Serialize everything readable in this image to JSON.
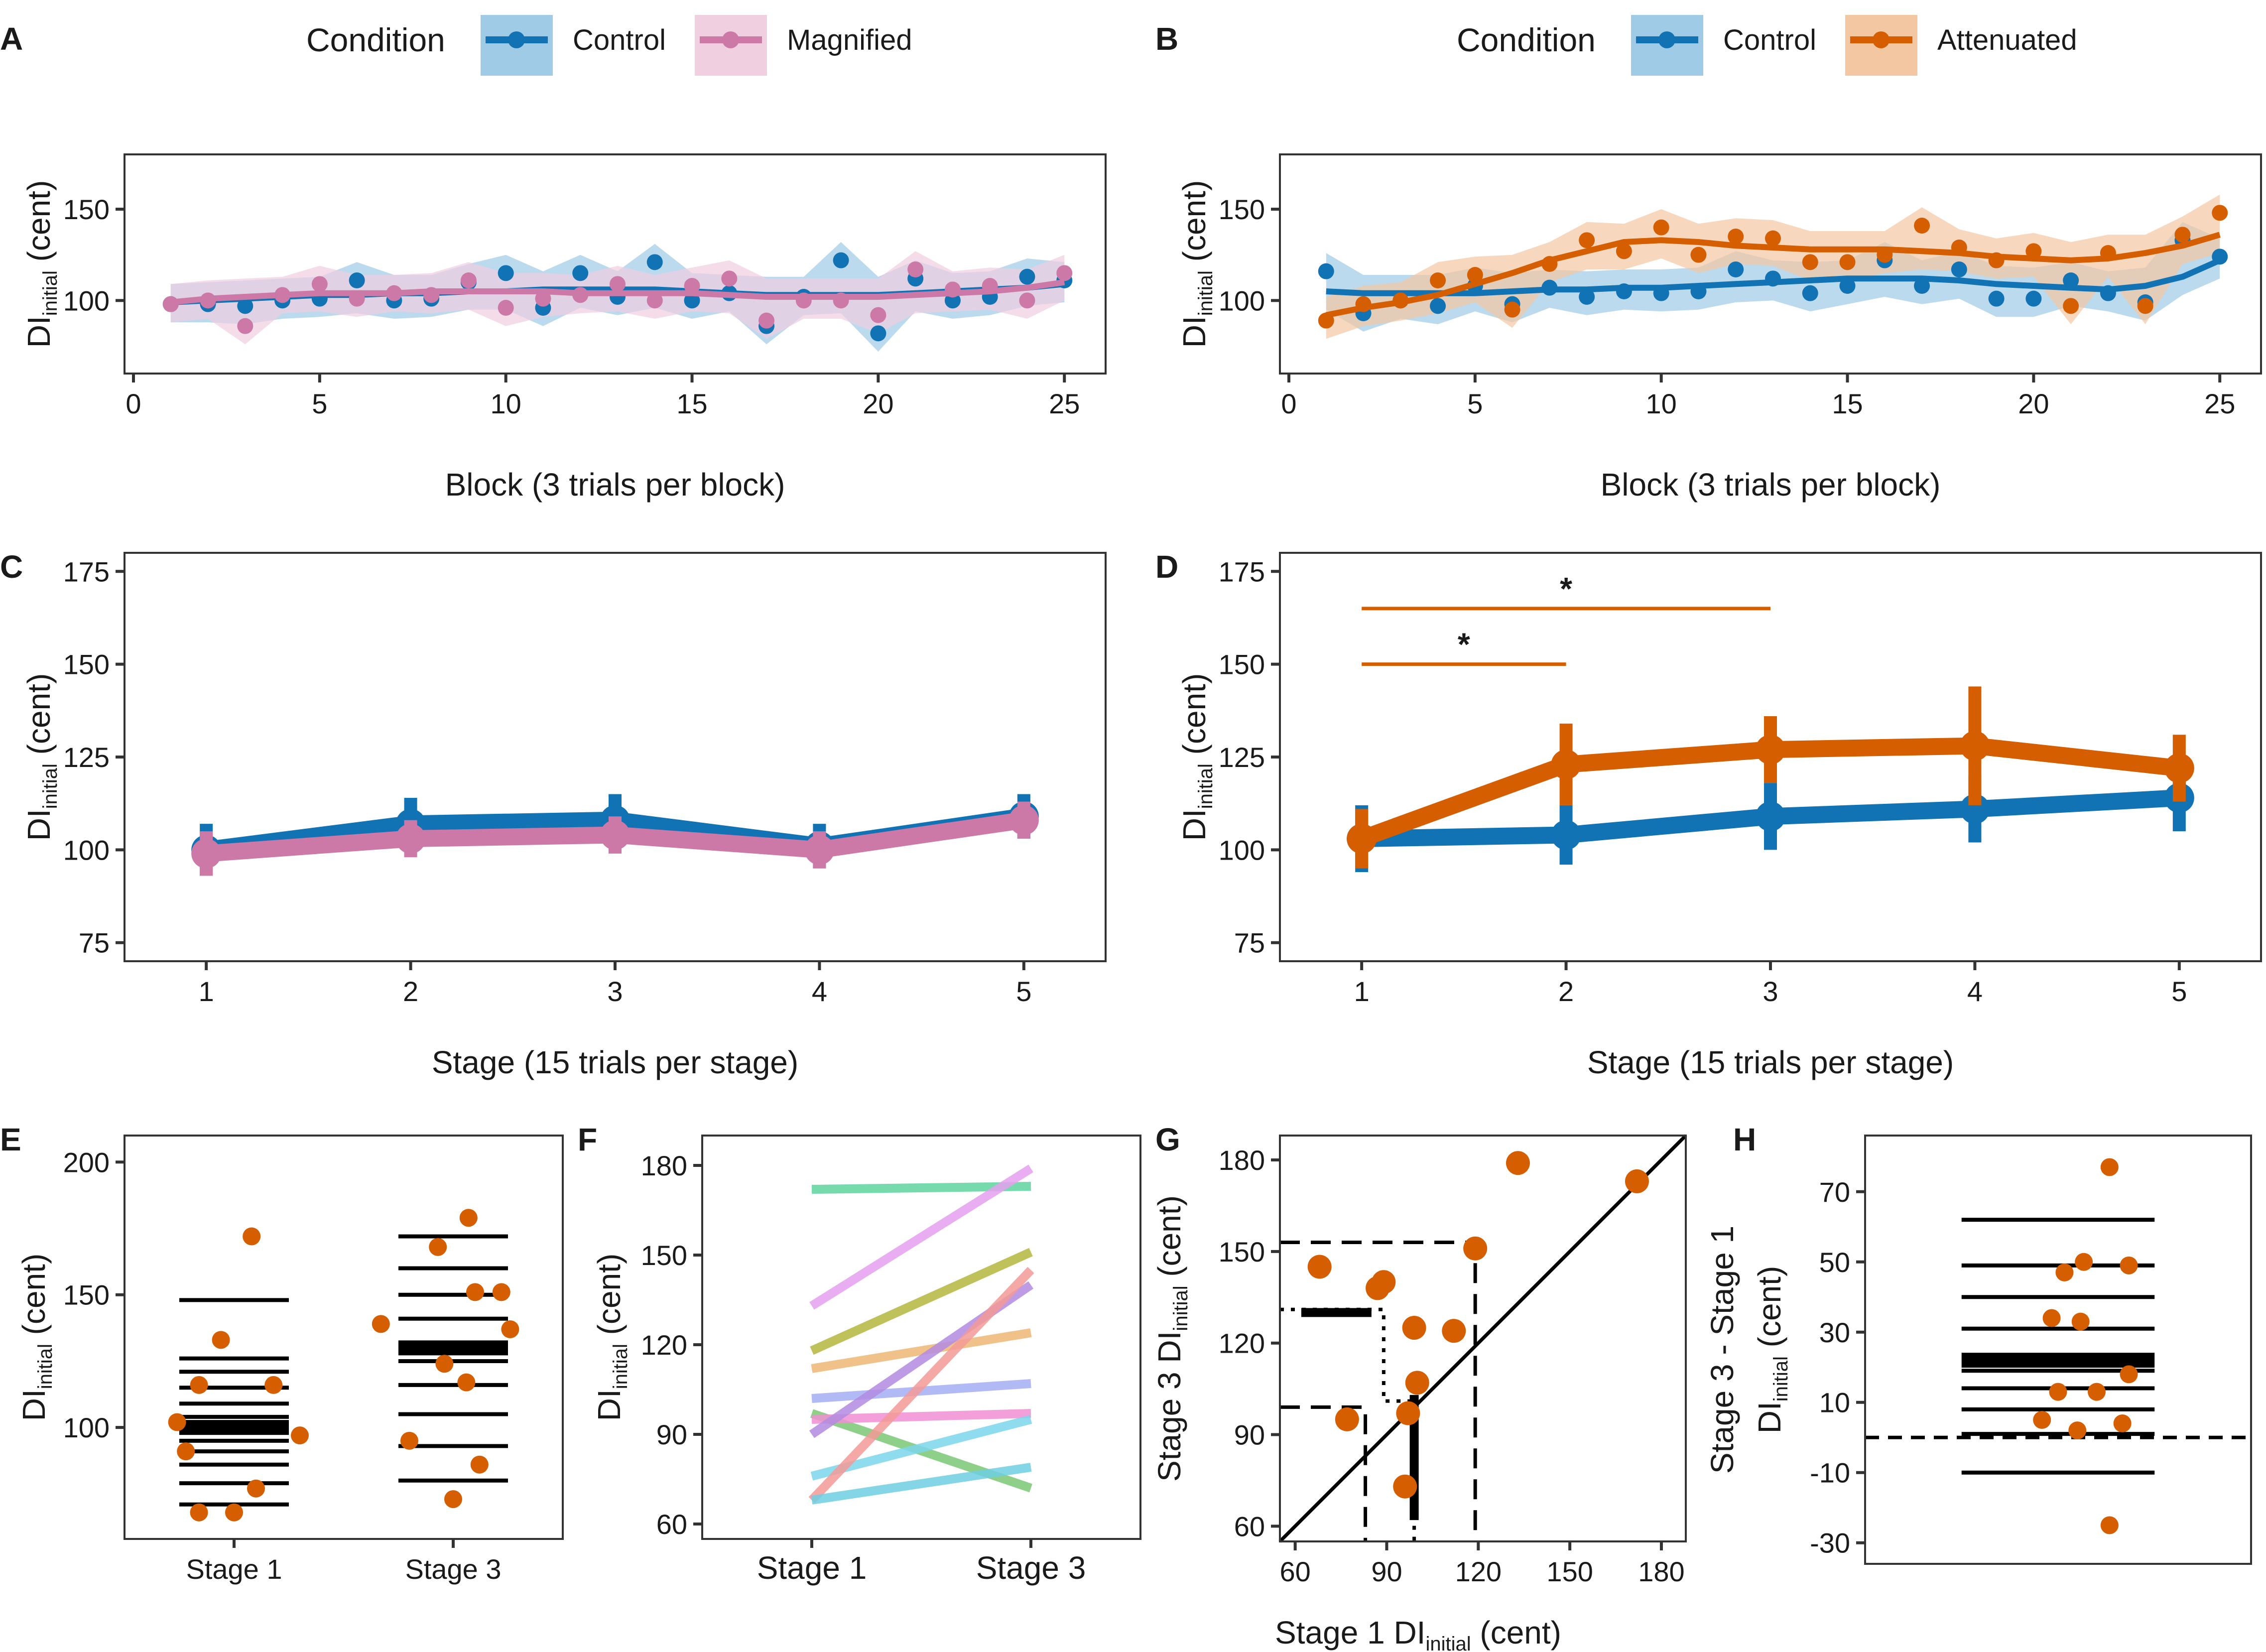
{
  "colors": {
    "control": "#1273b4",
    "control_ribbon": "#9fcbe6",
    "magnified": "#cc79a7",
    "magnified_ribbon": "#f0cfe0",
    "attenuated": "#d55e00",
    "attenuated_ribbon": "#f4c7a3"
  },
  "chart_data": [
    {
      "id": "A",
      "panel_label": "A",
      "type": "line",
      "legend": {
        "title": "Condition",
        "items": [
          "Control",
          "Magnified"
        ]
      },
      "xlabel": "Block (3 trials per block)",
      "ylabel_main": "DI",
      "ylabel_sub": "initial",
      "ylabel_unit": " (cent)",
      "xlim": [
        0,
        26
      ],
      "ylim": [
        60,
        180
      ],
      "xticks": [
        "0",
        "5",
        "10",
        "15",
        "20",
        "25"
      ],
      "yticks": [
        "100",
        "150"
      ],
      "x": [
        1,
        2,
        3,
        4,
        5,
        6,
        7,
        8,
        9,
        10,
        11,
        12,
        13,
        14,
        15,
        16,
        17,
        18,
        19,
        20,
        21,
        22,
        23,
        24,
        25
      ],
      "series": [
        {
          "name": "Control",
          "values": [
            98,
            98,
            97,
            100,
            101,
            111,
            100,
            101,
            110,
            115,
            96,
            115,
            102,
            121,
            100,
            104,
            86,
            102,
            122,
            82,
            112,
            100,
            102,
            113,
            111
          ],
          "smooth": [
            99,
            100,
            101,
            102,
            103,
            103,
            104,
            104,
            105,
            105,
            106,
            106,
            106,
            106,
            105,
            104,
            103,
            103,
            103,
            103,
            104,
            105,
            106,
            107,
            109
          ]
        },
        {
          "name": "Magnified",
          "values": [
            98,
            100,
            86,
            103,
            109,
            101,
            104,
            103,
            111,
            96,
            101,
            103,
            109,
            100,
            108,
            112,
            89,
            100,
            100,
            92,
            117,
            106,
            108,
            100,
            115
          ],
          "smooth": [
            99,
            101,
            102,
            103,
            104,
            104,
            104,
            105,
            105,
            105,
            105,
            104,
            104,
            104,
            104,
            103,
            102,
            102,
            102,
            102,
            103,
            104,
            105,
            107,
            110
          ]
        }
      ]
    },
    {
      "id": "B",
      "panel_label": "B",
      "type": "line",
      "legend": {
        "title": "Condition",
        "items": [
          "Control",
          "Attenuated"
        ]
      },
      "xlabel": "Block (3 trials per block)",
      "ylabel_main": "DI",
      "ylabel_sub": "initial",
      "ylabel_unit": " (cent)",
      "xlim": [
        0,
        26
      ],
      "ylim": [
        60,
        180
      ],
      "xticks": [
        "0",
        "5",
        "10",
        "15",
        "20",
        "25"
      ],
      "yticks": [
        "100",
        "150"
      ],
      "x": [
        1,
        2,
        3,
        4,
        5,
        6,
        7,
        8,
        9,
        10,
        11,
        12,
        13,
        14,
        15,
        16,
        17,
        18,
        19,
        20,
        21,
        22,
        23,
        24,
        25
      ],
      "series": [
        {
          "name": "Control",
          "values": [
            116,
            93,
            100,
            97,
            108,
            98,
            107,
            102,
            105,
            104,
            105,
            117,
            112,
            104,
            108,
            122,
            108,
            117,
            101,
            101,
            111,
            104,
            99,
            133,
            124
          ],
          "smooth": [
            105,
            104,
            104,
            104,
            104,
            105,
            106,
            106,
            107,
            107,
            108,
            109,
            110,
            111,
            112,
            112,
            112,
            111,
            109,
            108,
            107,
            106,
            108,
            113,
            122
          ]
        },
        {
          "name": "Attenuated",
          "values": [
            89,
            98,
            100,
            111,
            114,
            95,
            120,
            133,
            127,
            140,
            125,
            135,
            134,
            121,
            121,
            125,
            141,
            129,
            122,
            127,
            97,
            126,
            97,
            136,
            148
          ],
          "smooth": [
            92,
            96,
            99,
            103,
            109,
            115,
            122,
            127,
            132,
            133,
            132,
            130,
            129,
            128,
            128,
            128,
            127,
            126,
            124,
            123,
            122,
            123,
            126,
            130,
            136
          ]
        }
      ]
    },
    {
      "id": "C",
      "panel_label": "C",
      "type": "line",
      "xlabel": "Stage (15 trials per stage)",
      "ylabel_main": "DI",
      "ylabel_sub": "initial",
      "ylabel_unit": " (cent)",
      "xlim": [
        0.6,
        5.4
      ],
      "ylim": [
        70,
        180
      ],
      "xticks": [
        "1",
        "2",
        "3",
        "4",
        "5"
      ],
      "yticks": [
        "75",
        "100",
        "125",
        "150",
        "175"
      ],
      "x": [
        1,
        2,
        3,
        4,
        5
      ],
      "series": [
        {
          "name": "Control",
          "values": [
            100,
            107,
            108,
            101,
            109
          ],
          "err": [
            7,
            7,
            7,
            6,
            6
          ]
        },
        {
          "name": "Magnified",
          "values": [
            99,
            103,
            104,
            100,
            108
          ],
          "err": [
            6,
            5,
            5,
            5,
            5
          ]
        }
      ]
    },
    {
      "id": "D",
      "panel_label": "D",
      "type": "line",
      "xlabel": "Stage (15 trials per stage)",
      "ylabel_main": "DI",
      "ylabel_sub": "initial",
      "ylabel_unit": " (cent)",
      "xlim": [
        0.6,
        5.4
      ],
      "ylim": [
        70,
        180
      ],
      "xticks": [
        "1",
        "2",
        "3",
        "4",
        "5"
      ],
      "yticks": [
        "75",
        "100",
        "125",
        "150",
        "175"
      ],
      "x": [
        1,
        2,
        3,
        4,
        5
      ],
      "series": [
        {
          "name": "Control",
          "values": [
            103,
            104,
            109,
            111,
            114
          ],
          "err": [
            9,
            8,
            9,
            9,
            9
          ]
        },
        {
          "name": "Attenuated",
          "values": [
            103,
            123,
            127,
            128,
            122
          ],
          "err": [
            8,
            11,
            9,
            16,
            9
          ]
        }
      ],
      "annotations": [
        {
          "from": 1,
          "to": 3,
          "y": 165,
          "label": "*"
        },
        {
          "from": 1,
          "to": 2,
          "y": 150,
          "label": "*"
        }
      ]
    },
    {
      "id": "E",
      "panel_label": "E",
      "type": "scatter",
      "xlabel": "",
      "ylabel_main": "DI",
      "ylabel_sub": "initial",
      "ylabel_unit": " (cent)",
      "ylim": [
        58,
        210
      ],
      "categories": [
        "Stage 1",
        "Stage 3"
      ],
      "yticks": [
        "100",
        "150",
        "200"
      ],
      "points": [
        {
          "group": 1,
          "offset": 0.08,
          "y": 172
        },
        {
          "group": 1,
          "offset": -0.06,
          "y": 133
        },
        {
          "group": 1,
          "offset": -0.16,
          "y": 116
        },
        {
          "group": 1,
          "offset": 0.18,
          "y": 116
        },
        {
          "group": 1,
          "offset": -0.26,
          "y": 102
        },
        {
          "group": 1,
          "offset": 0.3,
          "y": 97
        },
        {
          "group": 1,
          "offset": -0.22,
          "y": 91
        },
        {
          "group": 1,
          "offset": 0.1,
          "y": 77
        },
        {
          "group": 1,
          "offset": -0.16,
          "y": 68
        },
        {
          "group": 1,
          "offset": 0.0,
          "y": 68
        },
        {
          "group": 2,
          "offset": 0.07,
          "y": 179
        },
        {
          "group": 2,
          "offset": -0.07,
          "y": 168
        },
        {
          "group": 2,
          "offset": 0.1,
          "y": 151
        },
        {
          "group": 2,
          "offset": 0.22,
          "y": 151
        },
        {
          "group": 2,
          "offset": -0.33,
          "y": 139
        },
        {
          "group": 2,
          "offset": 0.26,
          "y": 137
        },
        {
          "group": 2,
          "offset": -0.04,
          "y": 124
        },
        {
          "group": 2,
          "offset": 0.06,
          "y": 117
        },
        {
          "group": 2,
          "offset": -0.2,
          "y": 95
        },
        {
          "group": 2,
          "offset": 0.12,
          "y": 86
        },
        {
          "group": 2,
          "offset": 0.0,
          "y": 73
        }
      ],
      "stage1_lines": [
        148,
        126,
        121,
        115,
        109,
        104,
        100,
        95,
        91,
        86,
        79,
        71
      ],
      "stage1_mean": 100,
      "stage3_lines": [
        172,
        160,
        150,
        141,
        130,
        125,
        116,
        105,
        93,
        80
      ],
      "stage3_mean": 130
    },
    {
      "id": "F",
      "panel_label": "F",
      "type": "line",
      "xlabel": "",
      "ylabel_main": "DI",
      "ylabel_sub": "initial",
      "ylabel_unit": " (cent)",
      "ylim": [
        55,
        190
      ],
      "categories": [
        "Stage 1",
        "Stage 3"
      ],
      "yticks": [
        "60",
        "90",
        "120",
        "150",
        "180"
      ],
      "pairs": [
        {
          "s1": 172,
          "s3": 173,
          "color": "#5fd39d"
        },
        {
          "s1": 133,
          "s3": 179,
          "color": "#e5a0ef"
        },
        {
          "s1": 118,
          "s3": 151,
          "color": "#b4b63d"
        },
        {
          "s1": 112,
          "s3": 124,
          "color": "#eeb675"
        },
        {
          "s1": 102,
          "s3": 107,
          "color": "#a3aef2"
        },
        {
          "s1": 97,
          "s3": 72,
          "color": "#7ac874"
        },
        {
          "s1": 95,
          "s3": 97,
          "color": "#f18fd4"
        },
        {
          "s1": 90,
          "s3": 140,
          "color": "#b38be0"
        },
        {
          "s1": 76,
          "s3": 95,
          "color": "#7dd6ec"
        },
        {
          "s1": 68,
          "s3": 145,
          "color": "#f39a97"
        },
        {
          "s1": 68,
          "s3": 79,
          "color": "#6fcfe2"
        }
      ]
    },
    {
      "id": "G",
      "panel_label": "G",
      "type": "scatter",
      "xlabel_main": "Stage 1 DI",
      "xlabel_sub": "initial",
      "xlabel_unit": " (cent)",
      "ylabel_main": "Stage 3 DI",
      "ylabel_sub": "initial",
      "ylabel_unit": " (cent)",
      "xlim": [
        55,
        188
      ],
      "ylim": [
        55,
        188
      ],
      "xticks": [
        "60",
        "90",
        "120",
        "150",
        "180"
      ],
      "yticks": [
        "60",
        "90",
        "120",
        "150",
        "180"
      ],
      "x": [
        68,
        77,
        87,
        89,
        96,
        97,
        99,
        100,
        112,
        119,
        133,
        172
      ],
      "y": [
        145,
        95,
        138,
        140,
        73,
        97,
        125,
        107,
        124,
        151,
        179,
        173
      ],
      "dashed_refs": [
        [
          [
            55,
            153
          ],
          [
            119,
            153
          ],
          [
            119,
            55
          ]
        ],
        [
          [
            55,
            99
          ],
          [
            83,
            99
          ],
          [
            83,
            55
          ]
        ],
        [
          [
            55,
            131
          ],
          [
            89,
            131
          ],
          [
            89,
            101
          ],
          [
            99,
            101
          ],
          [
            99,
            55
          ]
        ]
      ],
      "thick_h": {
        "x": [
          62,
          85
        ],
        "y": 130
      },
      "thick_v": {
        "x": 99,
        "y": [
          62,
          103
        ]
      }
    },
    {
      "id": "H",
      "panel_label": "H",
      "type": "scatter",
      "xlabel": "",
      "ylabel_line1": "Stage 3 - Stage 1",
      "ylabel_main": "DI",
      "ylabel_sub": "initial",
      "ylabel_unit": " (cent)",
      "ylim": [
        -36,
        86
      ],
      "yticks": [
        "-30",
        "-10",
        "10",
        "30",
        "50",
        "70"
      ],
      "points": [
        {
          "offset": 0.16,
          "y": 77
        },
        {
          "offset": 0.08,
          "y": 50
        },
        {
          "offset": 0.02,
          "y": 47
        },
        {
          "offset": 0.22,
          "y": 49
        },
        {
          "offset": -0.02,
          "y": 34
        },
        {
          "offset": 0.07,
          "y": 33
        },
        {
          "offset": 0.22,
          "y": 18
        },
        {
          "offset": 0.0,
          "y": 13
        },
        {
          "offset": 0.12,
          "y": 13
        },
        {
          "offset": -0.05,
          "y": 5
        },
        {
          "offset": 0.06,
          "y": 2
        },
        {
          "offset": 0.2,
          "y": 4
        },
        {
          "offset": 0.16,
          "y": -25
        }
      ],
      "lines": [
        62,
        49,
        40,
        31,
        19,
        14,
        8,
        1,
        -10
      ],
      "mean": 22,
      "zero": 0
    }
  ]
}
